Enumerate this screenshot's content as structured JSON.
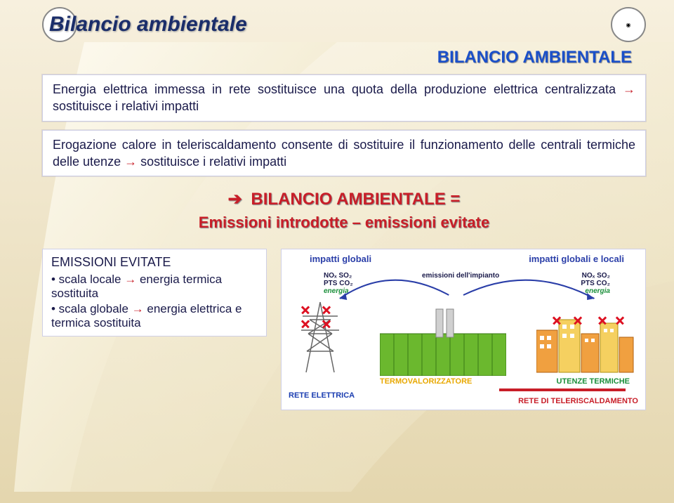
{
  "colors": {
    "bg_gradient_top": "#f5eddb",
    "bg_gradient_bottom": "#e6d9b5",
    "title": "#1a2d6a",
    "subhead_blue": "#1a4fc9",
    "text_dark": "#1a1a4a",
    "eq_red": "#c81e28",
    "arrow_red": "#c81e28",
    "box_border": "#cfcfe6",
    "impatti_blue": "#2a3ea8",
    "termo_yellow": "#e8a800",
    "rete_blue": "#1a3db0",
    "tele_red": "#c81e28",
    "utenze_green": "#1a8f3a",
    "plant_green": "#6bb82e",
    "building_orange": "#f0a040",
    "building_yellow": "#f5d060",
    "pylon_gray": "#666666"
  },
  "header": {
    "title": "Bilancio ambientale",
    "subhead": "BILANCIO AMBIENTALE"
  },
  "box1": "Energia elettrica immessa in rete sostituisce una quota della produzione elettrica centralizzata → sostituisce i relativi impatti",
  "box2": "Erogazione calore in teleriscaldamento consente di sostituire il funzionamento delle centrali termiche delle utenze → sostituisce i relativi impatti",
  "eq": {
    "line1": "BILANCIO AMBIENTALE =",
    "line2": "Emissioni introdotte – emissioni evitate"
  },
  "evitate": {
    "title": "EMISSIONI EVITATE",
    "b1_pre": "• scala locale ",
    "b1_post": " energia termica sostituita",
    "b2_pre": "• scala globale ",
    "b2_post": " energia elettrica e termica sostituita"
  },
  "diagram": {
    "impatti_globali": "impatti globali",
    "impatti_locali": "impatti globali e locali",
    "nox_so2": "NOₓ SO₂",
    "pts_co2": "PTS CO₂",
    "energia": "energia",
    "emissioni_impianto": "emissioni dell'impianto",
    "termo": "TERMOVALORIZZATORE",
    "rete_elettrica": "RETE ELETTRICA",
    "rete_tele": "RETE DI TELERISCALDAMENTO",
    "utenze": "UTENZE TERMICHE"
  }
}
